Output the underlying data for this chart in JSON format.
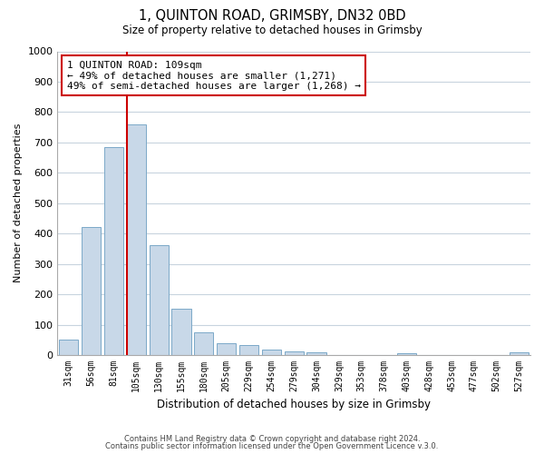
{
  "title": "1, QUINTON ROAD, GRIMSBY, DN32 0BD",
  "subtitle": "Size of property relative to detached houses in Grimsby",
  "xlabel": "Distribution of detached houses by size in Grimsby",
  "ylabel": "Number of detached properties",
  "bar_color": "#c8d8e8",
  "bar_edge_color": "#7ba8c8",
  "categories": [
    "31sqm",
    "56sqm",
    "81sqm",
    "105sqm",
    "130sqm",
    "155sqm",
    "180sqm",
    "205sqm",
    "229sqm",
    "254sqm",
    "279sqm",
    "304sqm",
    "329sqm",
    "353sqm",
    "378sqm",
    "403sqm",
    "428sqm",
    "453sqm",
    "477sqm",
    "502sqm",
    "527sqm"
  ],
  "values": [
    52,
    423,
    685,
    760,
    362,
    153,
    75,
    40,
    32,
    18,
    12,
    8,
    0,
    0,
    0,
    5,
    0,
    0,
    0,
    0,
    8
  ],
  "vline_color": "#cc0000",
  "annotation_text": "1 QUINTON ROAD: 109sqm\n← 49% of detached houses are smaller (1,271)\n49% of semi-detached houses are larger (1,268) →",
  "annotation_box_color": "#ffffff",
  "annotation_box_edge": "#cc0000",
  "ylim": [
    0,
    1000
  ],
  "yticks": [
    0,
    100,
    200,
    300,
    400,
    500,
    600,
    700,
    800,
    900,
    1000
  ],
  "footer1": "Contains HM Land Registry data © Crown copyright and database right 2024.",
  "footer2": "Contains public sector information licensed under the Open Government Licence v.3.0.",
  "background_color": "#ffffff",
  "grid_color": "#c8d4de"
}
